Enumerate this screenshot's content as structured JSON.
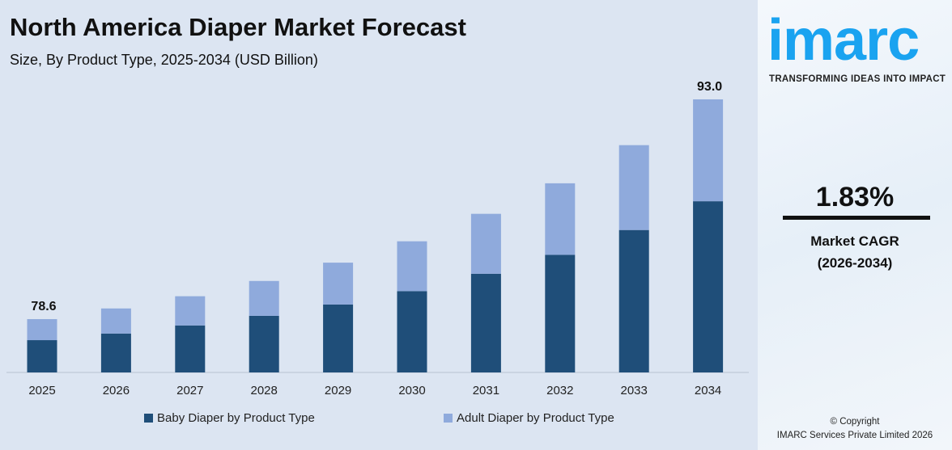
{
  "chart_data": {
    "type": "bar",
    "stacked": true,
    "title": "North America Diaper Market Forecast",
    "subtitle": "Size, By Product Type, 2025-2034 (USD Billion)",
    "categories": [
      "2025",
      "2026",
      "2027",
      "2028",
      "2029",
      "2030",
      "2031",
      "2032",
      "2033",
      "2034"
    ],
    "series": [
      {
        "name": "Baby Diaper by Product Type",
        "color": "#1f4e79",
        "values": [
          47.6,
          48.2,
          49.4,
          50.2,
          50.9,
          51.9,
          53.2,
          54.4,
          56.4,
          58.3
        ]
      },
      {
        "name": "Adult Diaper by Product Type",
        "color": "#8faadc",
        "values": [
          31.0,
          31.1,
          30.7,
          30.9,
          31.4,
          31.8,
          32.3,
          33.1,
          33.6,
          34.7
        ]
      }
    ],
    "data_labels": [
      {
        "category": "2025",
        "text": "78.6"
      },
      {
        "category": "2034",
        "text": "93.0"
      }
    ],
    "legend_position": "bottom",
    "grid": false
  },
  "brand": {
    "logo": "imarc",
    "tagline": "TRANSFORMING IDEAS INTO IMPACT",
    "color": "#1aa3f0"
  },
  "cagr": {
    "value": "1.83%",
    "label": "Market CAGR",
    "period": "(2026-2034)"
  },
  "copyright": {
    "line1": "© Copyright",
    "line2": "IMARC Services Private Limited 2026"
  }
}
